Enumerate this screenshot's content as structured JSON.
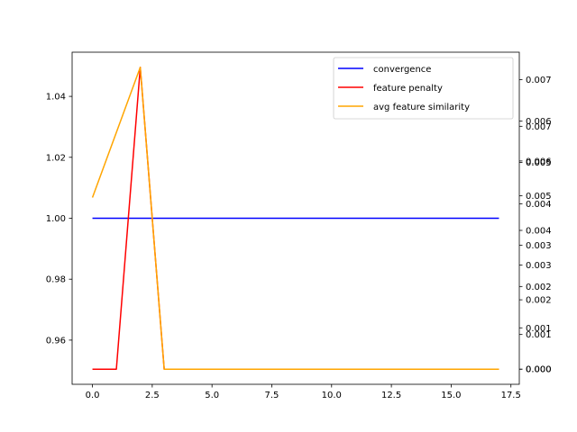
{
  "chart_data": {
    "type": "line",
    "title": "",
    "xlabel": "",
    "ylabel": "",
    "xlim": [
      -0.85,
      17.85
    ],
    "ylim": [
      0.9455,
      1.0545
    ],
    "xticks": [
      "0.0",
      "2.5",
      "5.0",
      "7.5",
      "10.0",
      "12.5",
      "15.0",
      "17.5"
    ],
    "yticks": [
      "0.96",
      "0.98",
      "1.00",
      "1.02",
      "1.04"
    ],
    "legend_position": "top-right",
    "grid": false,
    "series": [
      {
        "name": "convergence",
        "color": "#0000ff",
        "axis": "left",
        "x": [
          0,
          17
        ],
        "y": [
          1.0,
          1.0
        ]
      },
      {
        "name": "feature penalty",
        "color": "#ff0000",
        "axis": "right-1",
        "x": [
          0,
          1,
          2,
          3,
          4,
          5,
          6,
          7,
          8,
          9,
          10,
          11,
          12,
          13,
          14,
          15,
          16,
          17
        ],
        "y": [
          0,
          0,
          0.0087,
          0,
          0,
          0,
          0,
          0,
          0,
          0,
          0,
          0,
          0,
          0,
          0,
          0,
          0,
          0
        ]
      },
      {
        "name": "avg feature similarity",
        "color": "#ffa500",
        "axis": "right-2",
        "x": [
          0,
          2,
          3,
          4,
          5,
          6,
          7,
          8,
          9,
          10,
          11,
          12,
          13,
          14,
          15,
          16,
          17
        ],
        "y": [
          0.00415,
          0.0073,
          0,
          0,
          0,
          0,
          0,
          0,
          0,
          0,
          0,
          0,
          0,
          0,
          0,
          0,
          0
        ]
      }
    ],
    "right_axes": [
      {
        "id": "right-1",
        "ylim": [
          -0.000435,
          0.009135
        ],
        "ticks": [
          {
            "v": 0.0,
            "label": "0.000"
          },
          {
            "v": 0.001,
            "label": "0.001"
          },
          {
            "v": 0.002,
            "label": "0.002"
          },
          {
            "v": 0.003,
            "label": "0.003"
          },
          {
            "v": 0.004,
            "label": "0.004"
          },
          {
            "v": 0.005,
            "label": "0.005"
          },
          {
            "v": 0.006,
            "label": "0.006"
          },
          {
            "v": 0.007,
            "label": "0.007"
          }
        ]
      },
      {
        "id": "right-2",
        "ylim": [
          -0.000365,
          0.007665
        ],
        "ticks": [
          {
            "v": 0.0,
            "label": "0.000"
          },
          {
            "v": 0.001,
            "label": "0.001"
          },
          {
            "v": 0.002,
            "label": "0.002"
          },
          {
            "v": 0.003,
            "label": "0.003"
          },
          {
            "v": 0.004,
            "label": "0.004"
          },
          {
            "v": 0.005,
            "label": "0.005"
          },
          {
            "v": 0.006,
            "label": "0.006"
          },
          {
            "v": 0.007,
            "label": "0.007"
          }
        ]
      }
    ]
  }
}
